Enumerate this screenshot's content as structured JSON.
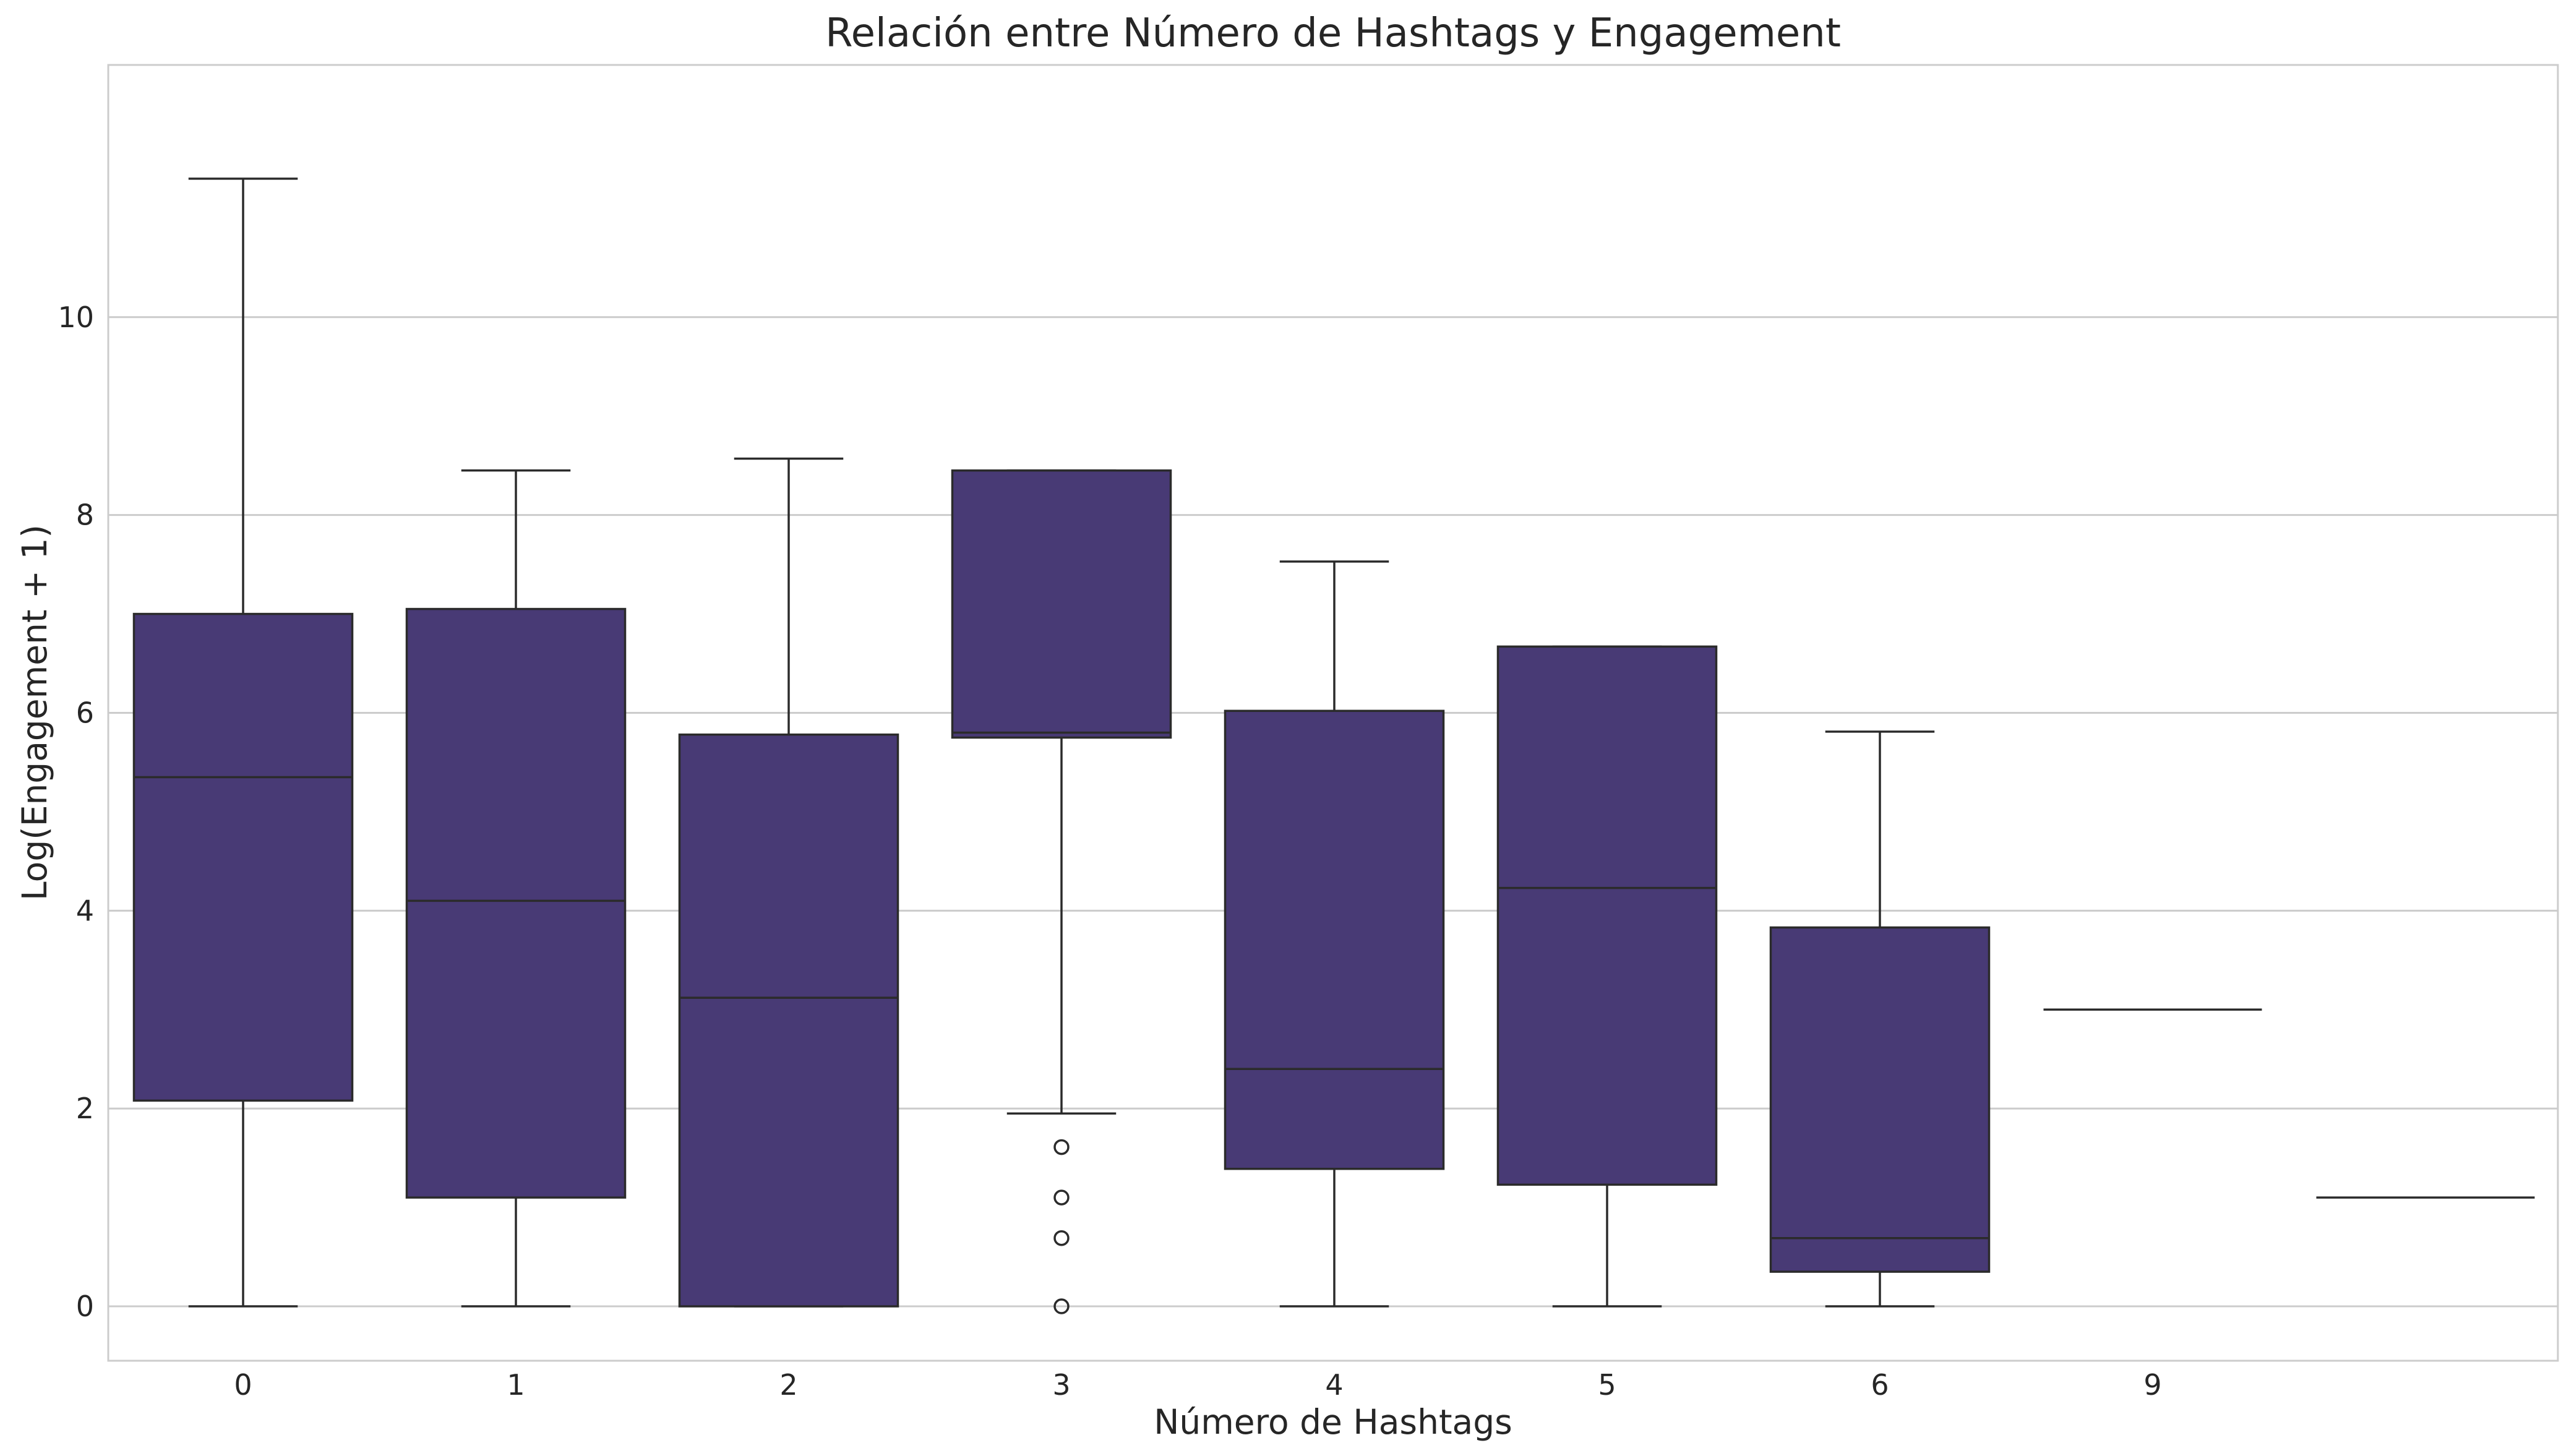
{
  "chart_data": {
    "type": "box",
    "title": "Relación entre Número de Hashtags y Engagement",
    "xlabel": "Número de Hashtags",
    "ylabel": "Log(Engagement + 1)",
    "ylim": [
      -0.55,
      12.55
    ],
    "yticks": [
      0,
      2,
      4,
      6,
      8,
      10
    ],
    "grid": "horizontal",
    "box_color": "#483a75",
    "line_color": "#2b2b2b",
    "grid_color": "#cccccc",
    "categories": [
      "0",
      "1",
      "2",
      "3",
      "4",
      "5",
      "6",
      "9",
      ""
    ],
    "boxes": [
      {
        "category": "0",
        "whisker_low": 0,
        "q1": 2.08,
        "median": 5.35,
        "q3": 7.0,
        "whisker_high": 11.4,
        "outliers": []
      },
      {
        "category": "1",
        "whisker_low": 0,
        "q1": 1.1,
        "median": 4.1,
        "q3": 7.05,
        "whisker_high": 8.45,
        "outliers": []
      },
      {
        "category": "2",
        "whisker_low": 0,
        "q1": 0,
        "median": 3.12,
        "q3": 5.78,
        "whisker_high": 8.57,
        "outliers": []
      },
      {
        "category": "3",
        "whisker_low": 1.95,
        "q1": 5.75,
        "median": 5.8,
        "q3": 8.45,
        "whisker_high": 8.45,
        "outliers": [
          1.61,
          1.1,
          0.69,
          0
        ]
      },
      {
        "category": "4",
        "whisker_low": 0,
        "q1": 1.39,
        "median": 2.4,
        "q3": 6.02,
        "whisker_high": 7.53,
        "outliers": []
      },
      {
        "category": "5",
        "whisker_low": 0,
        "q1": 1.23,
        "median": 4.23,
        "q3": 6.67,
        "whisker_high": 6.67,
        "outliers": []
      },
      {
        "category": "6",
        "whisker_low": 0,
        "q1": 0.35,
        "median": 0.69,
        "q3": 3.83,
        "whisker_high": 5.81,
        "outliers": []
      },
      {
        "category": "9",
        "whisker_low": 3.0,
        "q1": 3.0,
        "median": 3.0,
        "q3": 3.0,
        "whisker_high": 3.0,
        "outliers": []
      },
      {
        "category": "",
        "whisker_low": 1.1,
        "q1": 1.1,
        "median": 1.1,
        "q3": 1.1,
        "whisker_high": 1.1,
        "outliers": []
      }
    ]
  }
}
